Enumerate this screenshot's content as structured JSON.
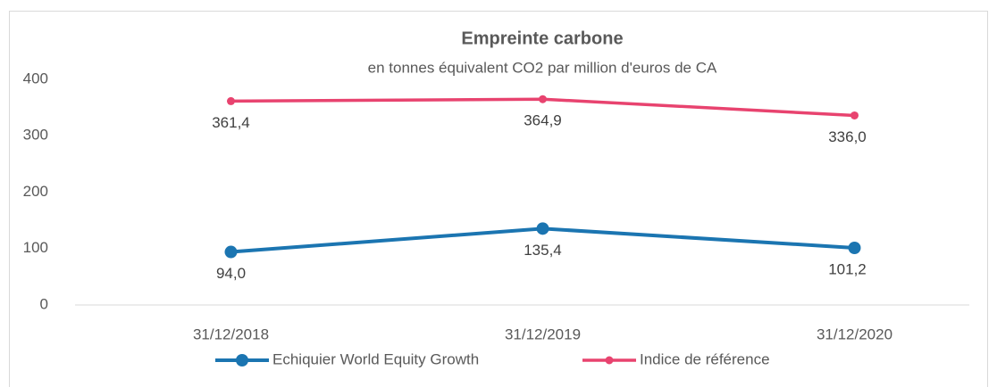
{
  "chart_data": {
    "type": "line",
    "title": "Empreinte carbone",
    "subtitle": "en tonnes équivalent CO2 par million d'euros de CA",
    "categories": [
      "31/12/2018",
      "31/12/2019",
      "31/12/2020"
    ],
    "series": [
      {
        "name": "Echiquier World Equity Growth",
        "color": "#1b75b1",
        "values": [
          94.0,
          135.4,
          101.2
        ],
        "value_labels": [
          "94,0",
          "135,4",
          "101,2"
        ]
      },
      {
        "name": "Indice de référence",
        "color": "#e8436f",
        "values": [
          361.4,
          364.9,
          336.0
        ],
        "value_labels": [
          "361,4",
          "364,9",
          "336,0"
        ]
      }
    ],
    "ylim": [
      0,
      400
    ],
    "yticks": [
      0,
      100,
      200,
      300,
      400
    ],
    "grid": false,
    "legend": "bottom"
  }
}
